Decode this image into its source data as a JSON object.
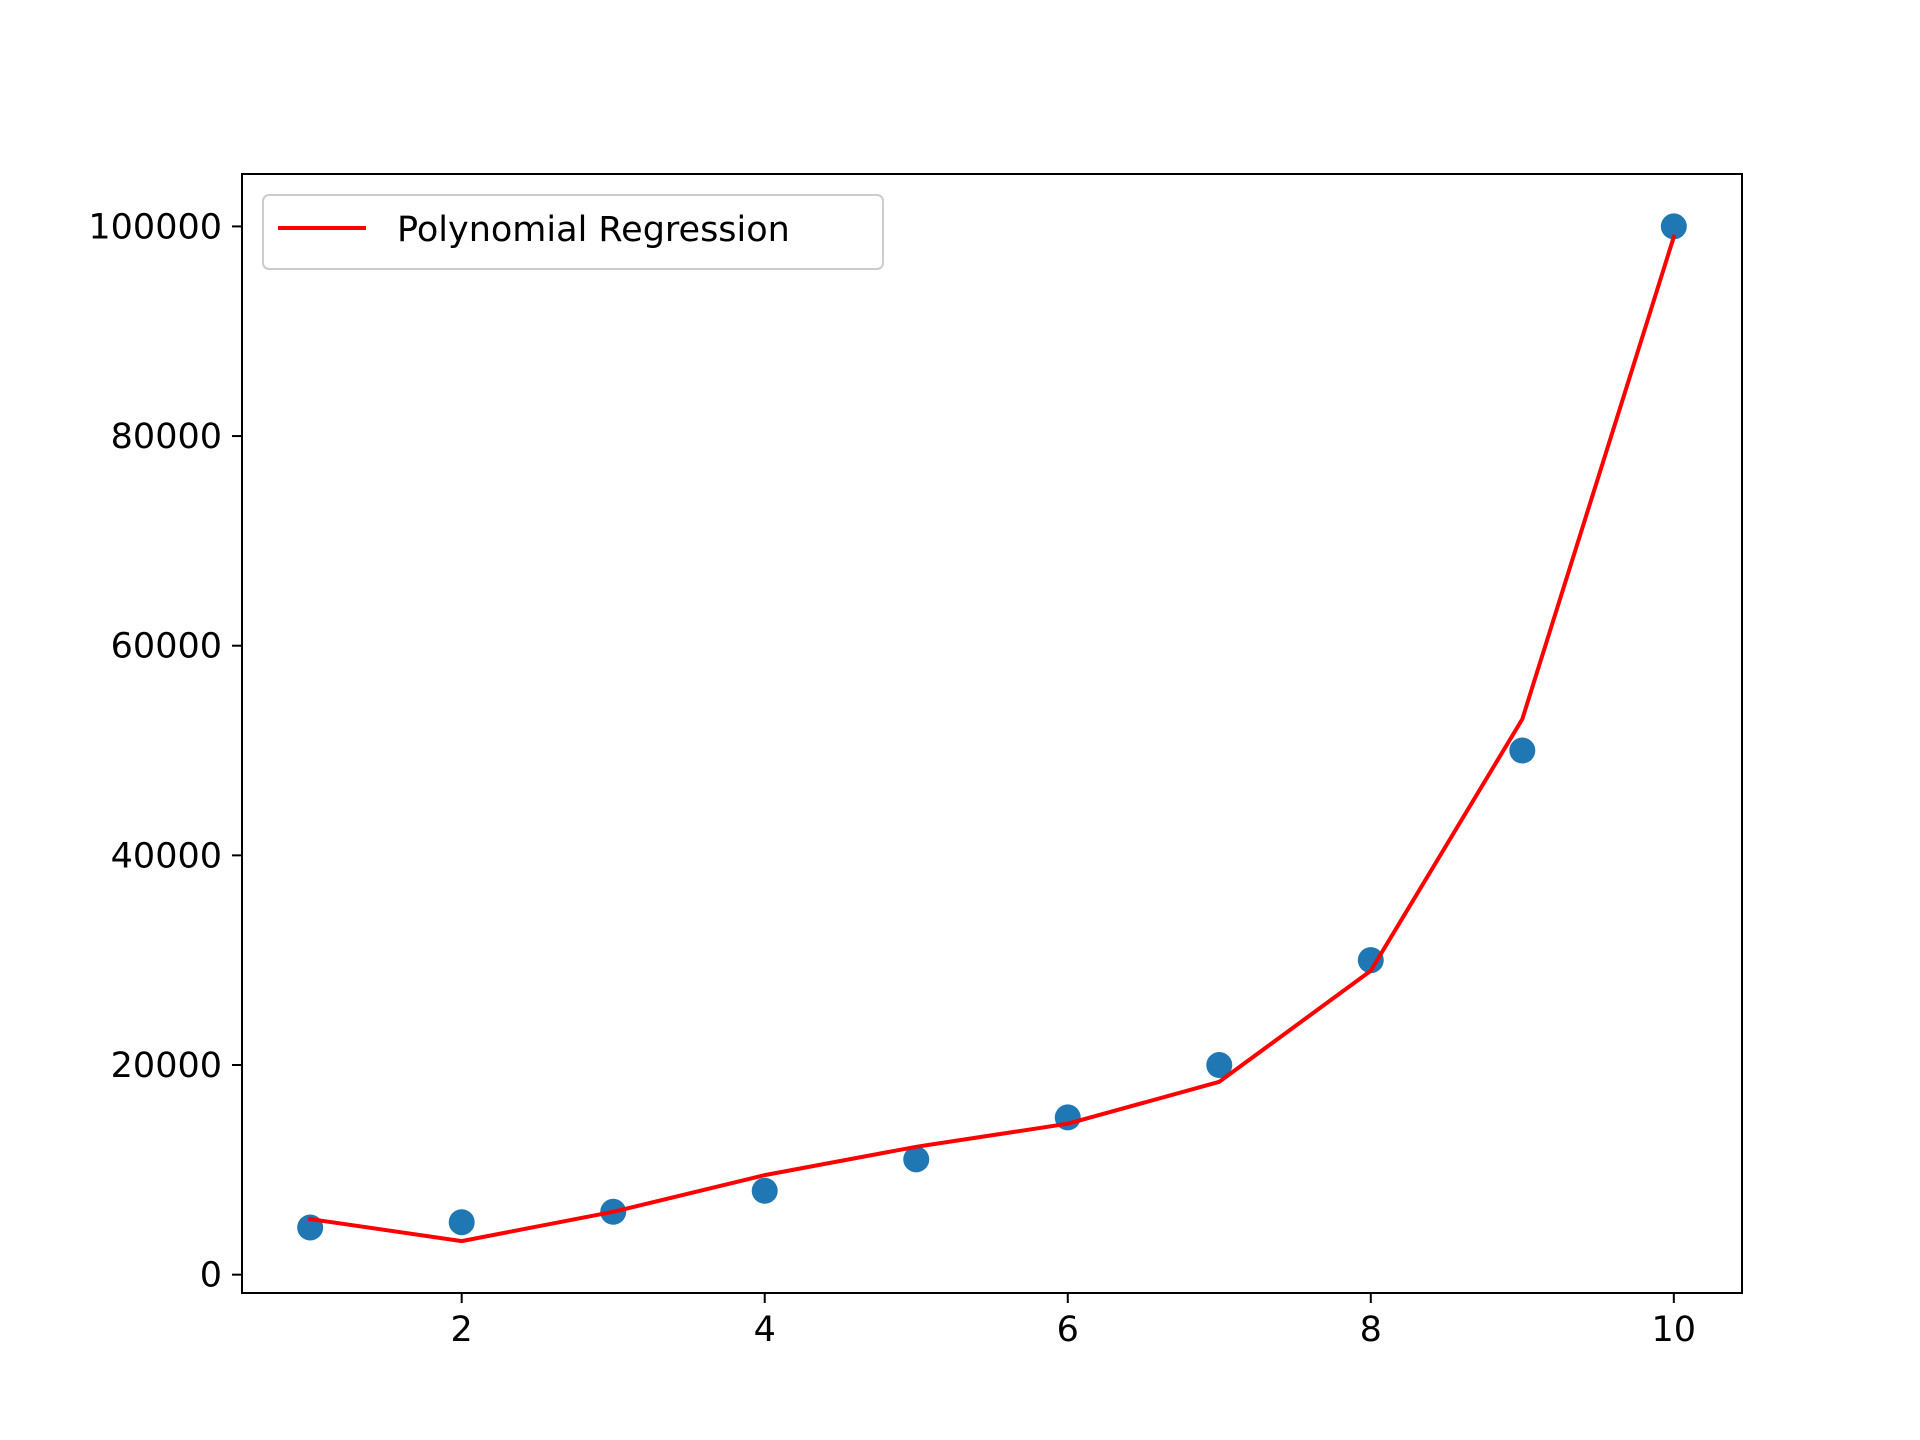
{
  "chart_data": {
    "type": "scatter",
    "xlim": [
      0.55,
      10.45
    ],
    "ylim": [
      -1750,
      105000
    ],
    "xticks": [
      2,
      4,
      6,
      8,
      10
    ],
    "xtick_labels": [
      "2",
      "4",
      "6",
      "8",
      "10"
    ],
    "yticks": [
      0,
      20000,
      40000,
      60000,
      80000,
      100000
    ],
    "ytick_labels": [
      "0",
      "20000",
      "40000",
      "60000",
      "80000",
      "100000"
    ],
    "grid": false,
    "legend_position": "top-left",
    "series": [
      {
        "kind": "scatter",
        "color": "#1f77b4",
        "x": [
          1,
          2,
          3,
          4,
          5,
          6,
          7,
          8,
          9,
          10
        ],
        "y": [
          4500,
          5000,
          6000,
          8000,
          11000,
          15000,
          20000,
          30000,
          50000,
          100000
        ]
      },
      {
        "kind": "line",
        "name": "Polynomial Regression",
        "color": "#ff0000",
        "x": [
          1,
          2,
          3,
          4,
          5,
          6,
          7,
          8,
          9,
          10
        ],
        "y": [
          5300,
          3200,
          6000,
          9500,
          12200,
          14400,
          18400,
          29000,
          53000,
          99000
        ]
      }
    ]
  }
}
